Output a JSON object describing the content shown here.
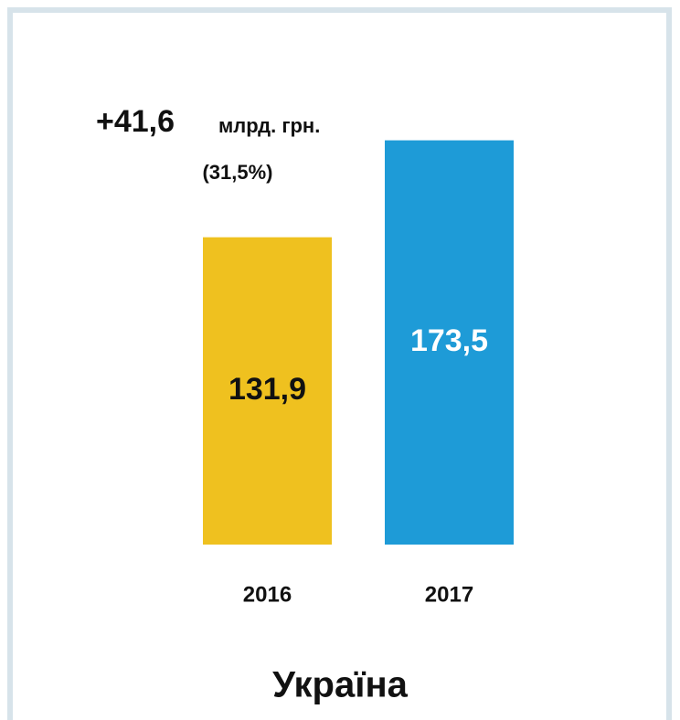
{
  "chart_data": {
    "type": "bar",
    "title": "Україна",
    "annotations": [
      "+41,6",
      "млрд. грн.",
      "(31,5%)"
    ],
    "categories": [
      "2016",
      "2017"
    ],
    "values": [
      131.9,
      173.5
    ],
    "value_labels": [
      "131,9",
      "173,5"
    ],
    "colors": [
      "#efc11f",
      "#1e9bd7"
    ],
    "label_colors": [
      "#111111",
      "#ffffff"
    ]
  }
}
